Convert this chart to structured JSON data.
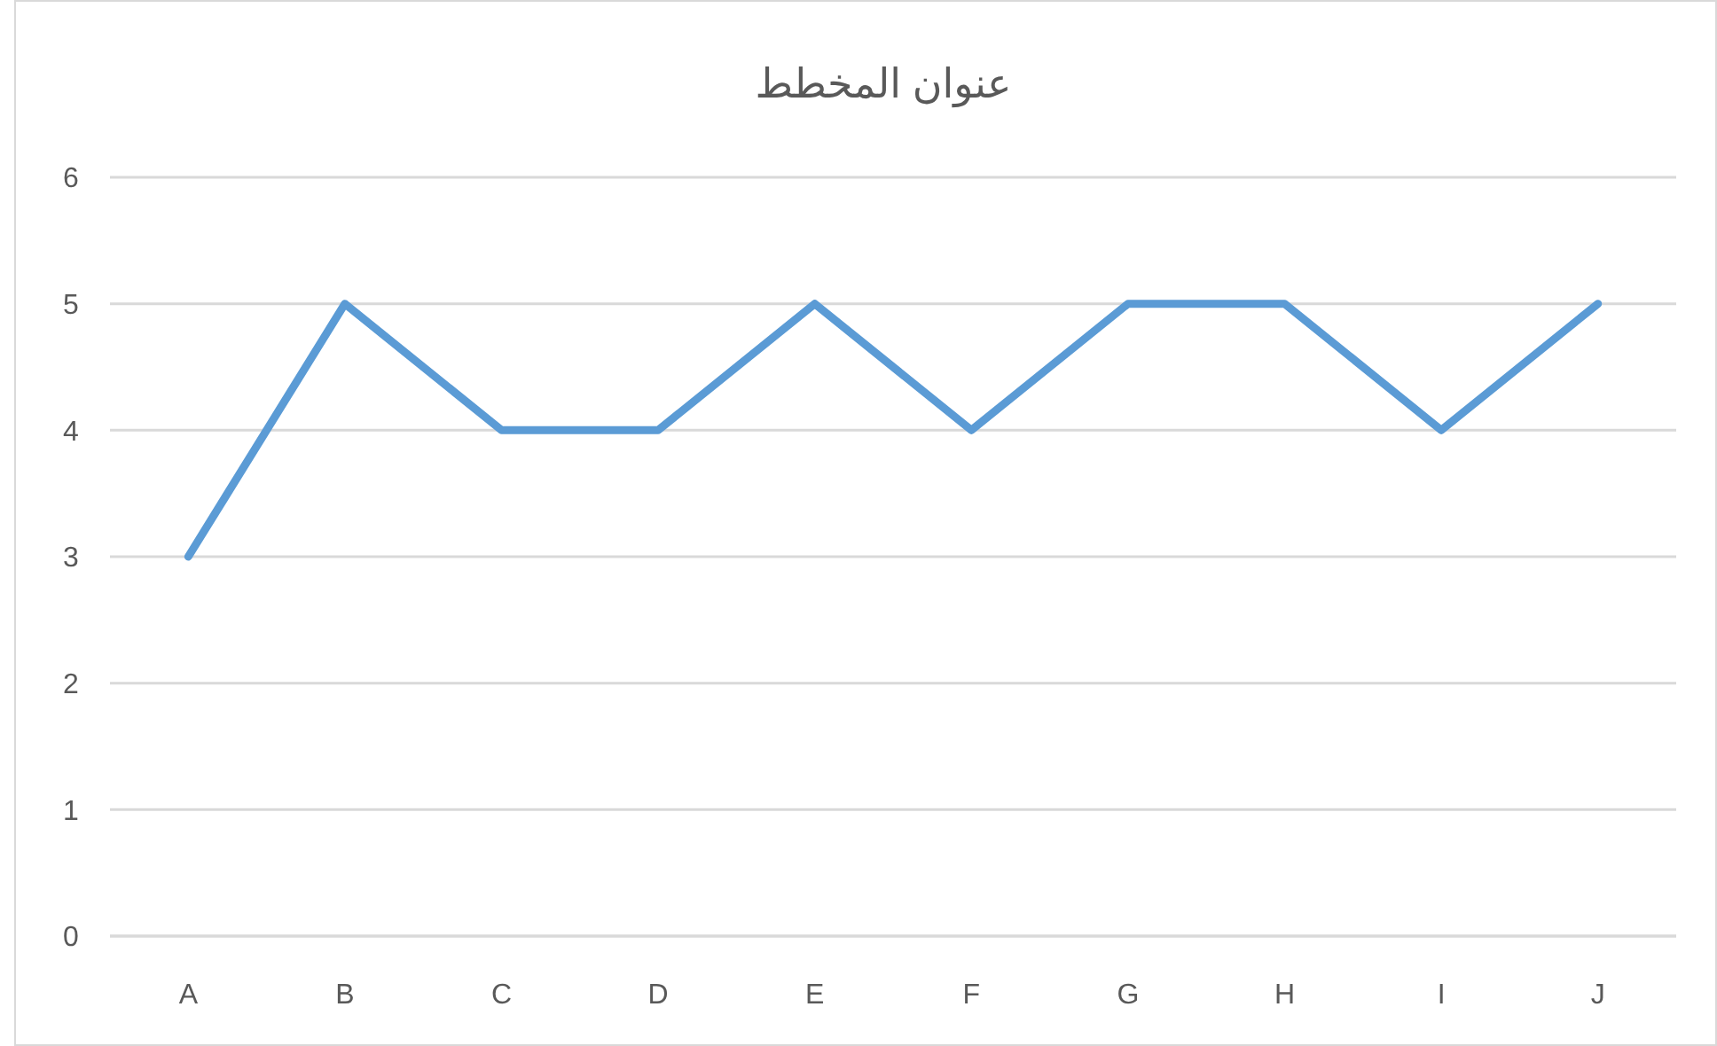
{
  "chart_data": {
    "type": "line",
    "title": "عنوان المخطط",
    "categories": [
      "A",
      "B",
      "C",
      "D",
      "E",
      "F",
      "G",
      "H",
      "I",
      "J"
    ],
    "series": [
      {
        "color": "#5b9bd5",
        "values": [
          3,
          5,
          4,
          4,
          5,
          4,
          5,
          5,
          4,
          5
        ]
      }
    ],
    "ylim": [
      0,
      6
    ],
    "yticks": [
      0,
      1,
      2,
      3,
      4,
      5,
      6
    ],
    "grid": "y",
    "marker": "none",
    "line_style": "solid"
  }
}
